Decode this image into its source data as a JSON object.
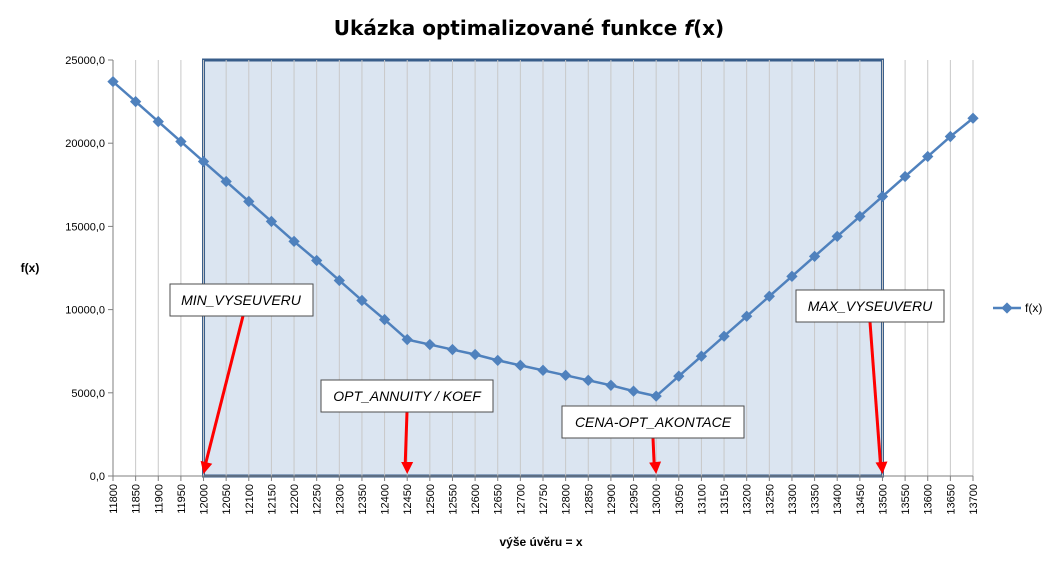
{
  "chart_data": {
    "type": "line",
    "title_main": "Ukázka optimalizované funkce ",
    "title_func": "f",
    "title_arg": "(x)",
    "xlabel": "výše úvěru = x",
    "ylabel": "f(x)",
    "ylim": [
      0,
      25000
    ],
    "y_ticks": [
      "0,0",
      "5000,0",
      "10000,0",
      "15000,0",
      "20000,0",
      "25000,0"
    ],
    "x": [
      11800,
      11850,
      11900,
      11950,
      12000,
      12050,
      12100,
      12150,
      12200,
      12250,
      12300,
      12350,
      12400,
      12450,
      12500,
      12550,
      12600,
      12650,
      12700,
      12750,
      12800,
      12850,
      12900,
      12950,
      13000,
      13050,
      13100,
      13150,
      13200,
      13250,
      13300,
      13350,
      13400,
      13450,
      13500,
      13550,
      13600,
      13650,
      13700
    ],
    "series": [
      {
        "name": "f(x)",
        "color": "#4f81bd",
        "values": [
          23700,
          22500,
          21300,
          20100,
          18900,
          17700,
          16500,
          15300,
          14100,
          12950,
          11750,
          10550,
          9400,
          8200,
          7900,
          7600,
          7300,
          6950,
          6650,
          6350,
          6050,
          5750,
          5450,
          5100,
          4800,
          6000,
          7200,
          8400,
          9600,
          10800,
          12000,
          13200,
          14400,
          15600,
          16800,
          18000,
          19200,
          20400,
          21500
        ]
      }
    ],
    "grid": "vertical",
    "legend_position": "right",
    "shaded_region": {
      "from": 12000,
      "to": 13500,
      "color": "#dbe5f1",
      "border_color": "#385d8a"
    },
    "annotations": [
      {
        "text": "MIN_VYSEUVERU",
        "x": 12000
      },
      {
        "text": "OPT_ANNUITY / KOEF",
        "x": 12450
      },
      {
        "text": "CENA-OPT_AKONTACE",
        "x": 13000
      },
      {
        "text": "MAX_VYSEUVERU",
        "x": 13500
      }
    ],
    "arrow_color": "#ff0000"
  }
}
